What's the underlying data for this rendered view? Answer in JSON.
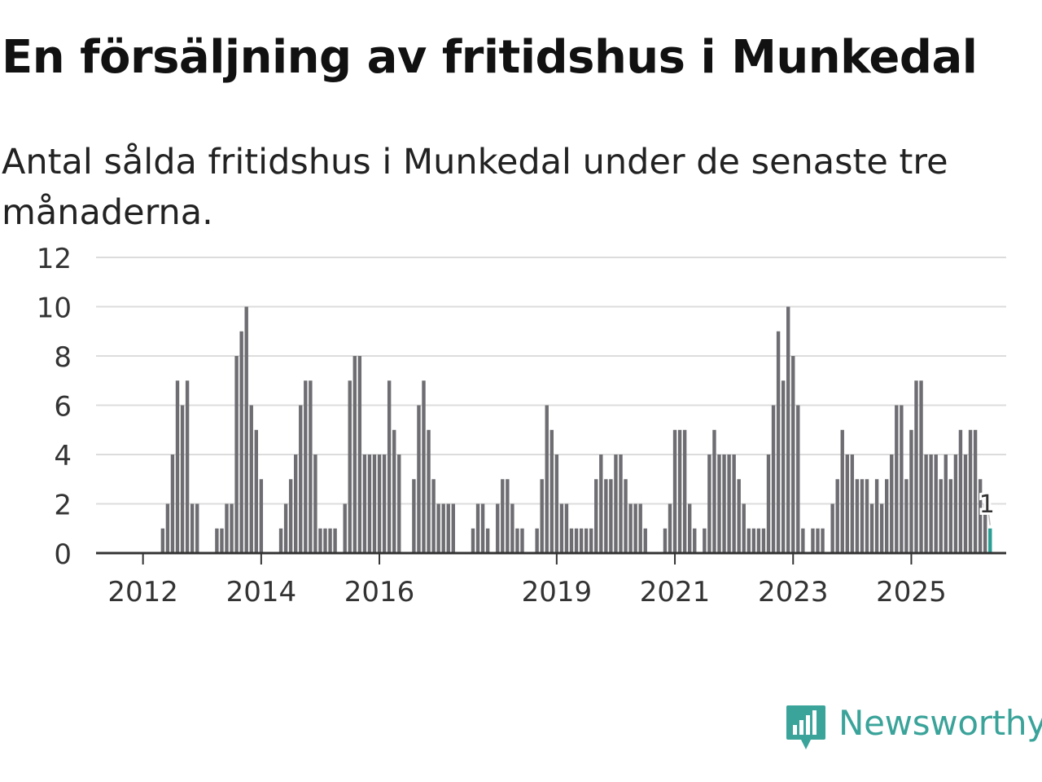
{
  "title": "En försäljning av fritidshus i Munkedal",
  "subtitle": "Antal sålda fritidshus i Munkedal under de senaste tre månaderna.",
  "brand": {
    "name": "Newsworthy",
    "color": "#3aa39a",
    "icon": "bar-chart-logo-icon"
  },
  "colors": {
    "bar": "#6e6d72",
    "highlight": "#2a9d94",
    "grid": "#dcdcdc",
    "axis": "#333333"
  },
  "chart_data": {
    "type": "bar",
    "title": "En försäljning av fritidshus i Munkedal",
    "xlabel": "",
    "ylabel": "",
    "ylim": [
      0,
      12
    ],
    "yticks": [
      0,
      2,
      4,
      6,
      8,
      10,
      12
    ],
    "xticks": [
      {
        "label": "2012",
        "year": 2012
      },
      {
        "label": "2014",
        "year": 2014
      },
      {
        "label": "2016",
        "year": 2016
      },
      {
        "label": "2019",
        "year": 2019
      },
      {
        "label": "2021",
        "year": 2021
      },
      {
        "label": "2023",
        "year": 2023
      },
      {
        "label": "2025",
        "year": 2025
      }
    ],
    "start": {
      "year": 2011,
      "month": 4
    },
    "series": [
      {
        "name": "Antal sålda fritidshus",
        "values": [
          0,
          0,
          0,
          0,
          0,
          0,
          0,
          0,
          0,
          0,
          0,
          0,
          0,
          1,
          2,
          4,
          7,
          6,
          7,
          2,
          2,
          0,
          0,
          0,
          1,
          1,
          2,
          2,
          8,
          9,
          10,
          6,
          5,
          3,
          0,
          0,
          0,
          1,
          2,
          3,
          4,
          6,
          7,
          7,
          4,
          1,
          1,
          1,
          1,
          0,
          2,
          7,
          8,
          8,
          4,
          4,
          4,
          4,
          4,
          7,
          5,
          4,
          0,
          0,
          3,
          6,
          7,
          5,
          3,
          2,
          2,
          2,
          2,
          0,
          0,
          0,
          1,
          2,
          2,
          1,
          0,
          2,
          3,
          3,
          2,
          1,
          1,
          0,
          0,
          1,
          3,
          6,
          5,
          4,
          2,
          2,
          1,
          1,
          1,
          1,
          1,
          3,
          4,
          3,
          3,
          4,
          4,
          3,
          2,
          2,
          2,
          1,
          0,
          0,
          0,
          1,
          2,
          5,
          5,
          5,
          2,
          1,
          0,
          1,
          4,
          5,
          4,
          4,
          4,
          4,
          3,
          2,
          1,
          1,
          1,
          1,
          4,
          6,
          9,
          7,
          10,
          8,
          6,
          1,
          0,
          1,
          1,
          1,
          0,
          2,
          3,
          5,
          4,
          4,
          3,
          3,
          3,
          2,
          3,
          2,
          3,
          4,
          6,
          6,
          3,
          5,
          7,
          7,
          4,
          4,
          4,
          3,
          4,
          3,
          4,
          5,
          4,
          5,
          5,
          3,
          2,
          1
        ]
      }
    ],
    "last_value_label": "1",
    "highlight_last": true
  }
}
